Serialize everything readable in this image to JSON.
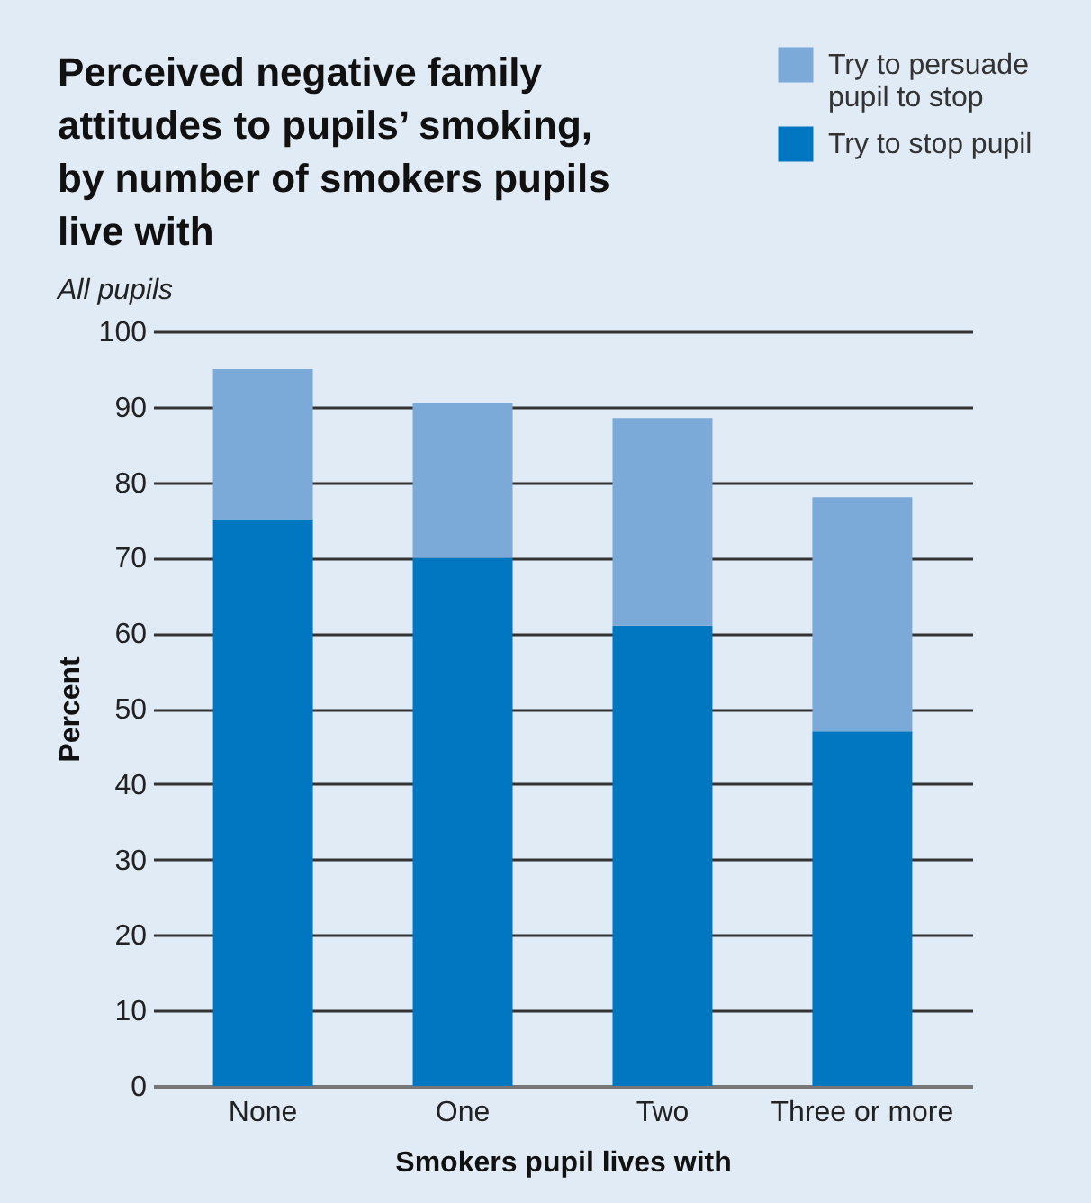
{
  "chart_data": {
    "type": "bar",
    "title": "Perceived negative family attitudes to pupils’ smoking, by number of smokers pupils live with",
    "subtitle": "All pupils",
    "xlabel": "Smokers pupil lives with",
    "ylabel": "Percent",
    "categories": [
      "None",
      "One",
      "Two",
      "Three or more"
    ],
    "series": [
      {
        "name": "Try to stop pupil",
        "color": "#0077c0",
        "values": [
          75,
          70,
          61,
          47
        ]
      },
      {
        "name": "Try to persuade pupil to stop",
        "color": "#7baad9",
        "values": [
          20,
          20.5,
          27.5,
          31
        ]
      }
    ],
    "stacked": true,
    "ylim": [
      0,
      100
    ],
    "yticks": [
      0,
      10,
      20,
      30,
      40,
      50,
      60,
      70,
      80,
      90,
      100
    ],
    "grid": "y",
    "legend": "top right"
  }
}
